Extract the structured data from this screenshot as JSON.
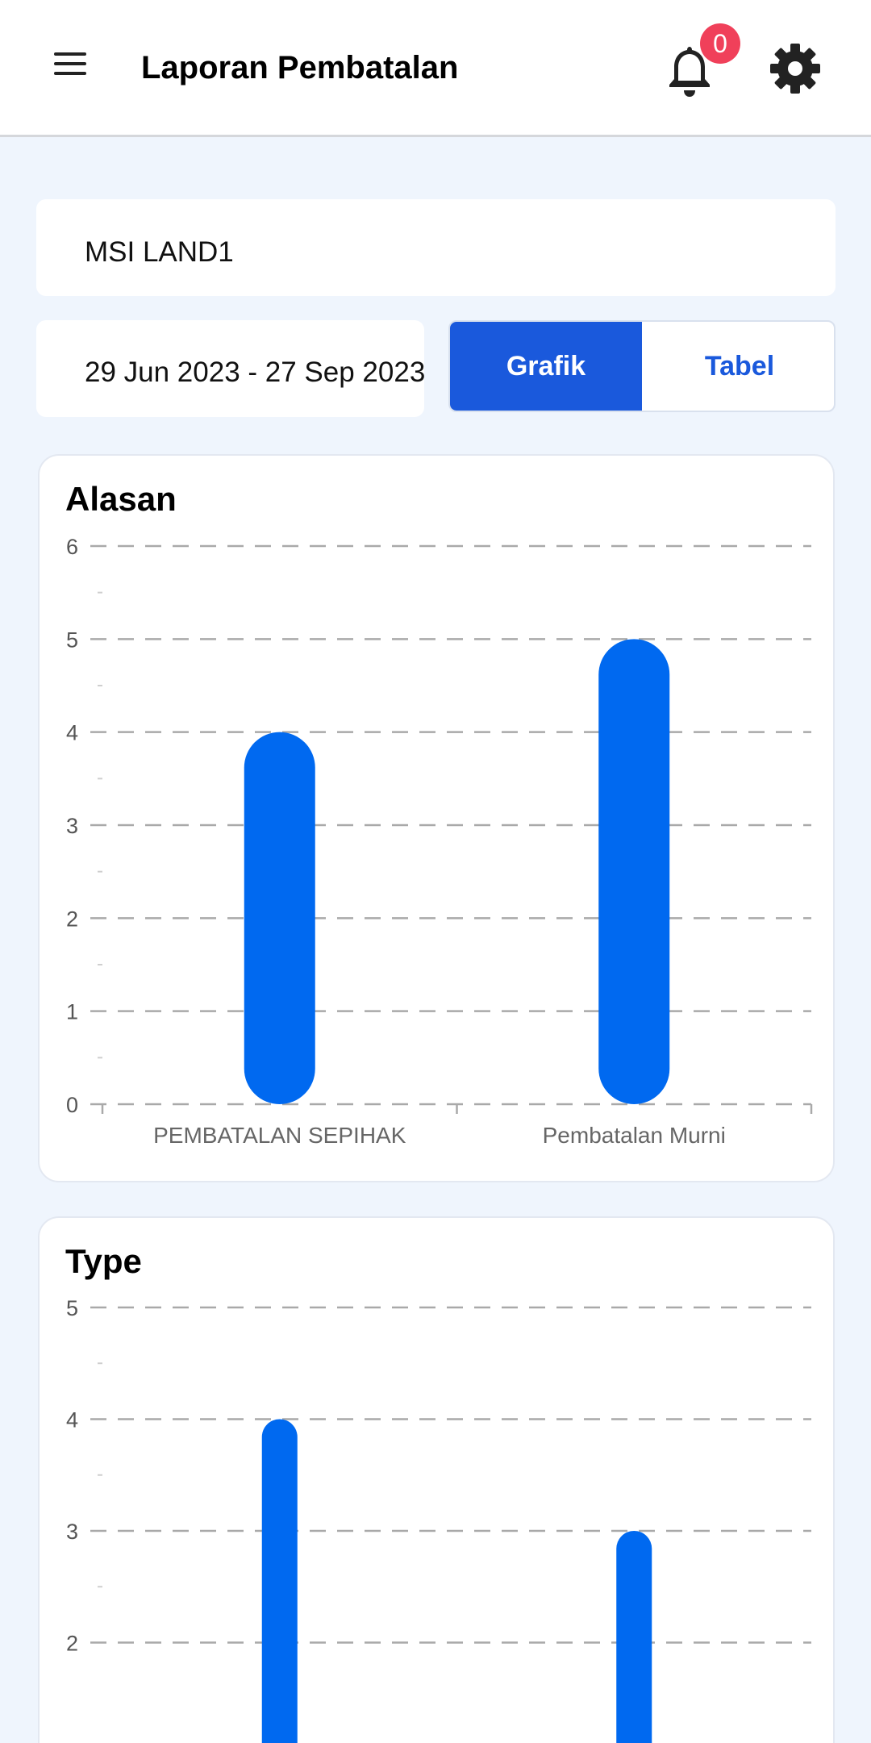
{
  "appbar": {
    "title": "Laporan Pembatalan",
    "menu_icon": "hamburger-menu-icon",
    "notification_icon": "bell-icon",
    "notification_count": "0",
    "settings_icon": "gear-icon"
  },
  "filters": {
    "project": "MSI LAND1",
    "date_range": "29 Jun 2023 - 27 Sep 2023"
  },
  "view_toggle": {
    "grafik_label": "Grafik",
    "tabel_label": "Tabel",
    "selected": "Grafik"
  },
  "colors": {
    "accent": "#1a59dc",
    "bar": "#0069f0",
    "badge": "#f0405a",
    "background": "#eff5fd"
  },
  "chart_data": [
    {
      "type": "bar",
      "title": "Alasan",
      "categories": [
        "PEMBATALAN SEPIHAK",
        "Pembatalan Murni"
      ],
      "values": [
        4,
        5
      ],
      "ylim": [
        0,
        6
      ],
      "yticks": [
        "0",
        "1",
        "2",
        "3",
        "4",
        "5",
        "6"
      ],
      "grid": true
    },
    {
      "type": "bar",
      "title": "Type",
      "categories": [
        "",
        ""
      ],
      "values": [
        4,
        3
      ],
      "ylim_visible": [
        2,
        5
      ],
      "yticks": [
        "2",
        "3",
        "4",
        "5"
      ],
      "grid": true
    }
  ]
}
